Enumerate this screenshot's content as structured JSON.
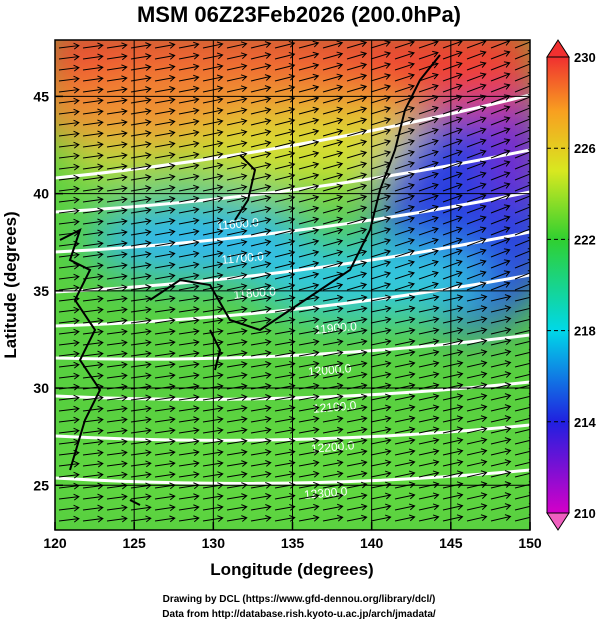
{
  "title": "MSM 06Z23Feb2026 (200.0hPa)",
  "x_axis": {
    "label": "Longitude (degrees)",
    "lim": [
      120,
      150
    ],
    "ticks": [
      120,
      125,
      130,
      135,
      140,
      145,
      150
    ]
  },
  "y_axis": {
    "label": "Latitude  (degrees)",
    "lim": [
      22.7,
      47.9
    ],
    "ticks": [
      25,
      30,
      35,
      40,
      45
    ]
  },
  "colorbar": {
    "lim": [
      210,
      230
    ],
    "ticks": [
      210,
      214,
      218,
      222,
      226,
      230
    ]
  },
  "contour_labels": [
    "11600.0",
    "11700.0",
    "11800.0",
    "11900.0",
    "12000.0",
    "12100.0",
    "12200.0",
    "12300.0"
  ],
  "credits": [
    "Drawing by DCL (https://www.gfd-dennou.org/library/dcl/)",
    "Data from http://database.rish.kyoto-u.ac.jp/arch/jmadata/"
  ]
}
